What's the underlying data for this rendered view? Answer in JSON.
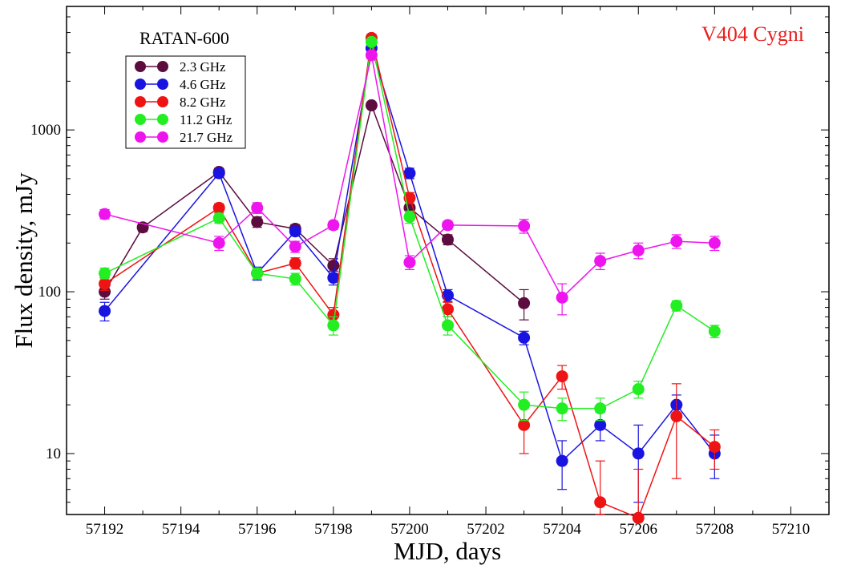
{
  "chart_data": {
    "type": "scatter",
    "title": "V404 Cygni",
    "subtitle": "RATAN-600",
    "xlabel": "MJD, days",
    "ylabel": "Flux density, mJy",
    "xlim": [
      57191,
      57211
    ],
    "ylim": [
      4.2,
      5800
    ],
    "yscale": "log",
    "grid": false,
    "legend_position": "top-left",
    "x_ticks": [
      57192,
      57194,
      57196,
      57198,
      57200,
      57202,
      57204,
      57206,
      57208,
      57210
    ],
    "x_tick_labels": [
      "57192",
      "57194",
      "57196",
      "57198",
      "57200",
      "57202",
      "57204",
      "57206",
      "57208",
      "57210"
    ],
    "y_ticks": [
      10,
      100,
      1000
    ],
    "y_tick_labels": [
      "10",
      "100",
      "1000"
    ],
    "title_color": "#e8201e",
    "series": [
      {
        "name": "2.3 GHz",
        "color": "#5c0c3e",
        "points": [
          {
            "x": 57192,
            "y": 100,
            "err": 10
          },
          {
            "x": 57193,
            "y": 250,
            "err": 15
          },
          {
            "x": 57195,
            "y": 550,
            "err": 30
          },
          {
            "x": 57196,
            "y": 270,
            "err": 20
          },
          {
            "x": 57197,
            "y": 245,
            "err": 15
          },
          {
            "x": 57198,
            "y": 145,
            "err": 15
          },
          {
            "x": 57199,
            "y": 1420,
            "err": 50
          },
          {
            "x": 57200,
            "y": 330,
            "err": 30
          },
          {
            "x": 57201,
            "y": 210,
            "err": 15
          },
          {
            "x": 57203,
            "y": 85,
            "err": 18
          }
        ]
      },
      {
        "name": "4.6 GHz",
        "color": "#1a14e0",
        "points": [
          {
            "x": 57192,
            "y": 76,
            "err": 10
          },
          {
            "x": 57195,
            "y": 540,
            "err": 30
          },
          {
            "x": 57196,
            "y": 130,
            "err": 12
          },
          {
            "x": 57197,
            "y": 236,
            "err": 15
          },
          {
            "x": 57198,
            "y": 122,
            "err": 12
          },
          {
            "x": 57199,
            "y": 3200,
            "err": 150
          },
          {
            "x": 57200,
            "y": 540,
            "err": 40
          },
          {
            "x": 57201,
            "y": 95,
            "err": 8
          },
          {
            "x": 57203,
            "y": 52,
            "err": 5
          },
          {
            "x": 57204,
            "y": 9,
            "err": 3
          },
          {
            "x": 57205,
            "y": 15,
            "err": 3
          },
          {
            "x": 57206,
            "y": 10,
            "err": 5
          },
          {
            "x": 57207,
            "y": 20,
            "err": 3
          },
          {
            "x": 57208,
            "y": 10,
            "err": 3
          }
        ]
      },
      {
        "name": "8.2 GHz",
        "color": "#ee1414",
        "points": [
          {
            "x": 57192,
            "y": 112,
            "err": 10
          },
          {
            "x": 57195,
            "y": 330,
            "err": 20
          },
          {
            "x": 57196,
            "y": 130,
            "err": 10
          },
          {
            "x": 57197,
            "y": 150,
            "err": 12
          },
          {
            "x": 57198,
            "y": 72,
            "err": 8
          },
          {
            "x": 57199,
            "y": 3700,
            "err": 200
          },
          {
            "x": 57200,
            "y": 380,
            "err": 30
          },
          {
            "x": 57201,
            "y": 78,
            "err": 8
          },
          {
            "x": 57203,
            "y": 15,
            "err": 5
          },
          {
            "x": 57204,
            "y": 30,
            "err": 5
          },
          {
            "x": 57205,
            "y": 5,
            "err": 4
          },
          {
            "x": 57206,
            "y": 4,
            "err": 4
          },
          {
            "x": 57207,
            "y": 17,
            "err": 10
          },
          {
            "x": 57208,
            "y": 11,
            "err": 3
          }
        ]
      },
      {
        "name": "11.2 GHz",
        "color": "#22ee22",
        "points": [
          {
            "x": 57192,
            "y": 130,
            "err": 10
          },
          {
            "x": 57195,
            "y": 285,
            "err": 20
          },
          {
            "x": 57196,
            "y": 130,
            "err": 10
          },
          {
            "x": 57197,
            "y": 120,
            "err": 10
          },
          {
            "x": 57198,
            "y": 62,
            "err": 8
          },
          {
            "x": 57199,
            "y": 3500,
            "err": 150
          },
          {
            "x": 57200,
            "y": 290,
            "err": 25
          },
          {
            "x": 57201,
            "y": 62,
            "err": 8
          },
          {
            "x": 57203,
            "y": 20,
            "err": 4
          },
          {
            "x": 57204,
            "y": 19,
            "err": 3
          },
          {
            "x": 57205,
            "y": 19,
            "err": 3
          },
          {
            "x": 57206,
            "y": 25,
            "err": 3
          },
          {
            "x": 57207,
            "y": 82,
            "err": 6
          },
          {
            "x": 57208,
            "y": 57,
            "err": 5
          }
        ]
      },
      {
        "name": "21.7 GHz",
        "color": "#ee14ee",
        "points": [
          {
            "x": 57192,
            "y": 302,
            "err": 20
          },
          {
            "x": 57195,
            "y": 200,
            "err": 20
          },
          {
            "x": 57196,
            "y": 330,
            "err": 25
          },
          {
            "x": 57197,
            "y": 190,
            "err": 15
          },
          {
            "x": 57198,
            "y": 258,
            "err": 15
          },
          {
            "x": 57199,
            "y": 2900,
            "err": 150
          },
          {
            "x": 57200,
            "y": 152,
            "err": 15
          },
          {
            "x": 57201,
            "y": 258,
            "err": 15
          },
          {
            "x": 57203,
            "y": 255,
            "err": 25
          },
          {
            "x": 57204,
            "y": 92,
            "err": 20
          },
          {
            "x": 57205,
            "y": 155,
            "err": 18
          },
          {
            "x": 57206,
            "y": 180,
            "err": 20
          },
          {
            "x": 57207,
            "y": 205,
            "err": 20
          },
          {
            "x": 57208,
            "y": 200,
            "err": 20
          }
        ]
      }
    ]
  }
}
